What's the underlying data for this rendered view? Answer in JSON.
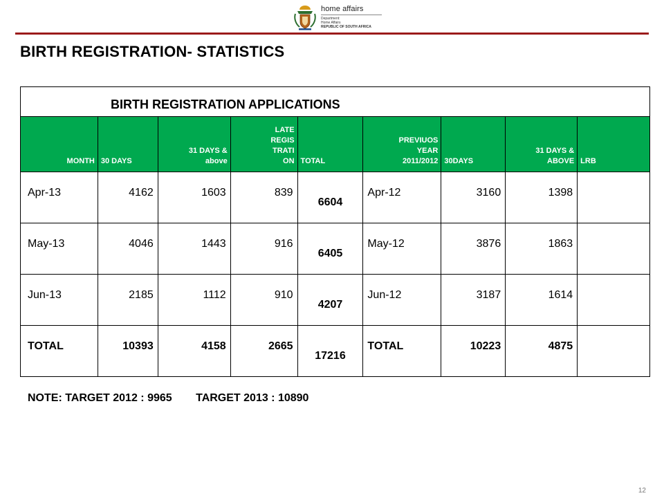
{
  "header": {
    "logo": {
      "title": "home affairs",
      "lines": [
        "Department:",
        "Home Affairs",
        "REPUBLIC OF SOUTH AFRICA"
      ],
      "emblem": "coat-of-arms-emblem",
      "rule_color": "#9b1b1b"
    }
  },
  "page_title": "BIRTH REGISTRATION- STATISTICS",
  "table": {
    "caption": "BIRTH REGISTRATION APPLICATIONS",
    "header_color": "#00a94f",
    "columns": [
      "MONTH",
      "30 DAYS",
      "31 DAYS & above",
      "LATE REGIS TRATI ON",
      "TOTAL",
      "PREVIUOS YEAR 2011/2012",
      "30DAYS",
      "31 DAYS & ABOVE",
      "LRB"
    ],
    "rows": [
      {
        "month": "Apr-13",
        "d30": "4162",
        "d31": "1603",
        "late": "839",
        "total": "6604",
        "prev": "Apr-12",
        "p30": "3160",
        "p31": "1398",
        "lrb": ""
      },
      {
        "month": "May-13",
        "d30": "4046",
        "d31": "1443",
        "late": "916",
        "total": "6405",
        "prev": "May-12",
        "p30": "3876",
        "p31": "1863",
        "lrb": ""
      },
      {
        "month": "Jun-13",
        "d30": "2185",
        "d31": "1112",
        "late": "910",
        "total": "4207",
        "prev": "Jun-12",
        "p30": "3187",
        "p31": "1614",
        "lrb": ""
      },
      {
        "month": "TOTAL",
        "d30": "10393",
        "d31": "4158",
        "late": "2665",
        "total": "17216",
        "prev": "TOTAL",
        "p30": "10223",
        "p31": "4875",
        "lrb": ""
      }
    ]
  },
  "note": {
    "part1": "NOTE: TARGET 2012 : 9965",
    "part2": "TARGET 2013 : 10890"
  },
  "page_number": "12"
}
